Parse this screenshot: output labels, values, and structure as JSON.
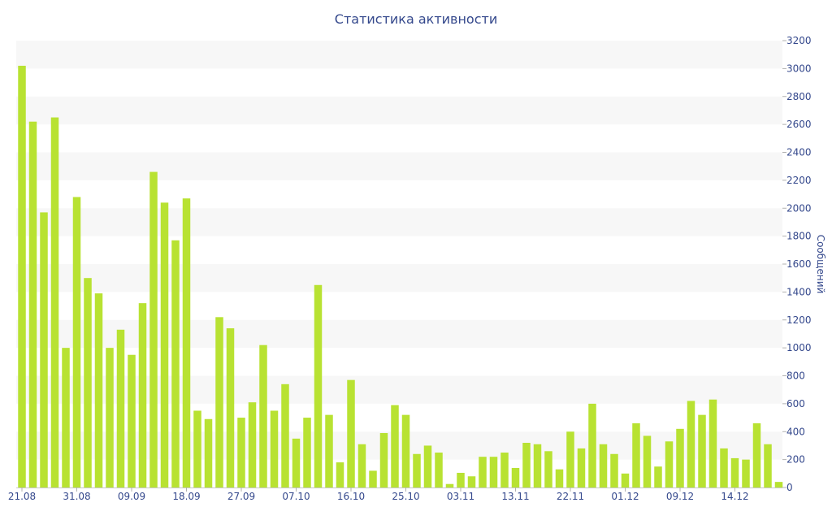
{
  "chart_data": {
    "type": "bar",
    "title": "Статистика активности",
    "ylabel": "Сообщений",
    "xlabel": "",
    "ylim": [
      0,
      3200
    ],
    "y_ticks": [
      0,
      200,
      400,
      600,
      800,
      1000,
      1200,
      1400,
      1600,
      1800,
      2000,
      2200,
      2400,
      2600,
      2800,
      3000,
      3200
    ],
    "y_axis_side": "right",
    "grid": "alternating horizontal bands",
    "x_tick_labels": [
      {
        "label": "21.08",
        "index": 0
      },
      {
        "label": "31.08",
        "index": 5
      },
      {
        "label": "09.09",
        "index": 10
      },
      {
        "label": "18.09",
        "index": 15
      },
      {
        "label": "27.09",
        "index": 20
      },
      {
        "label": "07.10",
        "index": 25
      },
      {
        "label": "16.10",
        "index": 30
      },
      {
        "label": "25.10",
        "index": 35
      },
      {
        "label": "03.11",
        "index": 40
      },
      {
        "label": "13.11",
        "index": 45
      },
      {
        "label": "22.11",
        "index": 50
      },
      {
        "label": "01.12",
        "index": 55
      },
      {
        "label": "09.12",
        "index": 60
      },
      {
        "label": "14.12",
        "index": 65
      }
    ],
    "values": [
      3020,
      2620,
      1970,
      2650,
      1000,
      2080,
      1500,
      1390,
      1000,
      1130,
      950,
      1320,
      2260,
      2040,
      1770,
      2070,
      550,
      490,
      1220,
      1140,
      500,
      610,
      1020,
      550,
      740,
      350,
      500,
      1450,
      520,
      180,
      770,
      310,
      120,
      390,
      590,
      520,
      240,
      300,
      250,
      25,
      105,
      80,
      220,
      220,
      250,
      140,
      320,
      310,
      260,
      130,
      400,
      280,
      600,
      310,
      240,
      100,
      460,
      370,
      150,
      330,
      420,
      620,
      520,
      630,
      280,
      210,
      200,
      460,
      310,
      40
    ],
    "colors": {
      "bar": "#b8e232",
      "band": "#f7f7f7",
      "axis_text": "#34488c"
    }
  }
}
